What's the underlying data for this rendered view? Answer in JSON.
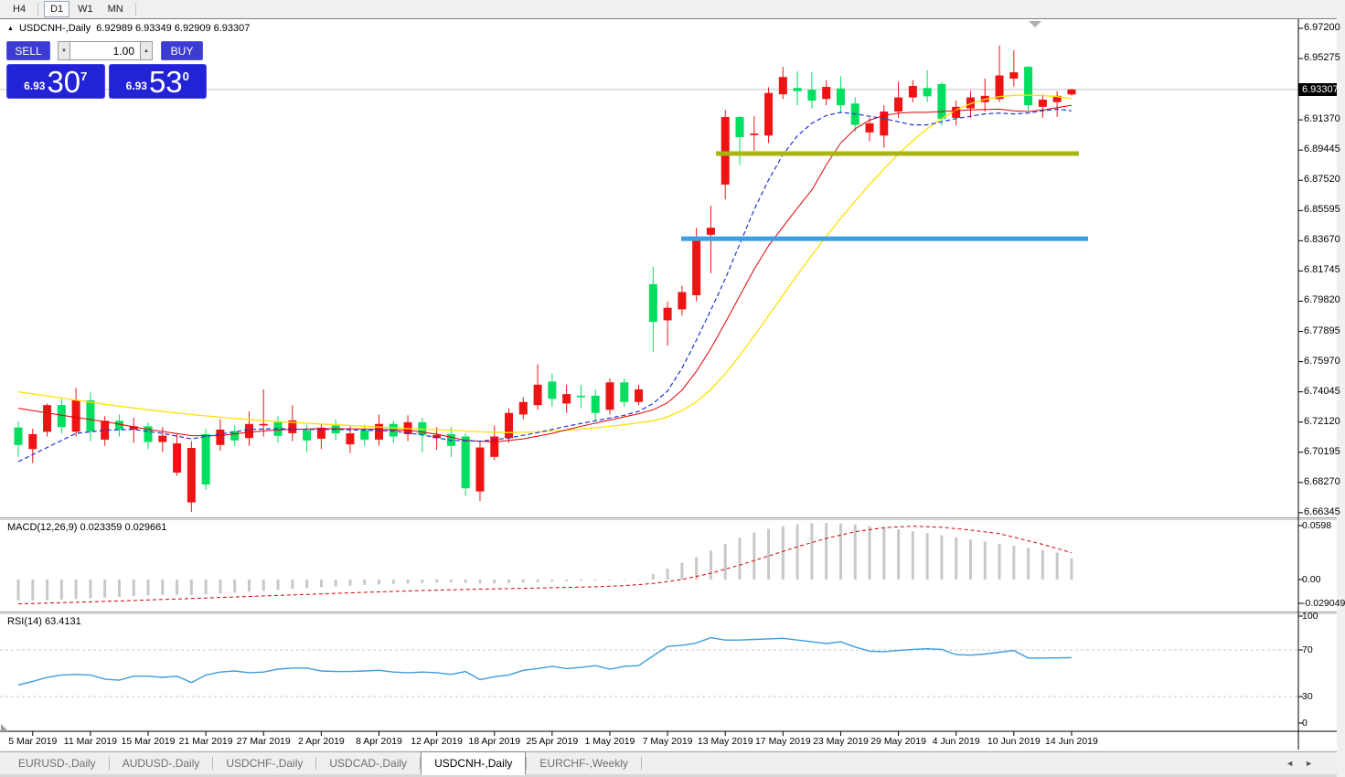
{
  "toolbar": {
    "timeframes": [
      {
        "label": "H4",
        "active": false
      },
      {
        "label": "D1",
        "active": true
      },
      {
        "label": "W1",
        "active": false
      },
      {
        "label": "MN",
        "active": false
      }
    ]
  },
  "icons": {
    "collapse_trade_panel": "▲",
    "spin_down": "▼",
    "spin_up": "▲",
    "tab_scroll_left": "◄",
    "tab_scroll_right": "►"
  },
  "header": {
    "symbol_period": "USDCNH-,Daily",
    "ohlc_text": "6.92989 6.93349 6.92909 6.93307"
  },
  "trade_panel": {
    "sell_label": "SELL",
    "buy_label": "BUY",
    "volume": "1.00",
    "sell_quote": {
      "small": "6.93",
      "big": "30",
      "sup": "7"
    },
    "buy_quote": {
      "small": "6.93",
      "big": "53",
      "sup": "0"
    }
  },
  "price_axis": {
    "ticks": [
      "6.97200",
      "6.95275",
      "6.91370",
      "6.89445",
      "6.87520",
      "6.85595",
      "6.83670",
      "6.81745",
      "6.79820",
      "6.77895",
      "6.75970",
      "6.74045",
      "6.72120",
      "6.70195",
      "6.68270",
      "6.66345"
    ],
    "current_price": "6.93307"
  },
  "colors": {
    "bull": "#ee1414",
    "bear": "#00df5f",
    "ma_fast": "#2036d4",
    "ma_mid": "#e30000",
    "ma_slow": "#ffe100",
    "hline_olive": "#a9b512",
    "hline_blue": "#3e9fe0",
    "macd_bar": "#c8c8c8",
    "macd_signal": "#d40000",
    "rsi_line": "#3e9cdd",
    "level_dash": "#c8c8c8",
    "price_line": "#c0c0c0",
    "trade_accent": "#2222d6"
  },
  "chart_data": {
    "type": "candlestick+indicators",
    "symbol": "USDCNH-",
    "timeframe": "Daily",
    "ylim": [
      6.6605,
      6.9778
    ],
    "candles": [
      [
        6.7177,
        6.7215,
        6.699,
        6.7066
      ],
      [
        6.704,
        6.717,
        6.695,
        6.7135
      ],
      [
        6.715,
        6.733,
        6.712,
        6.732
      ],
      [
        6.732,
        6.736,
        6.714,
        6.718
      ],
      [
        6.715,
        6.743,
        6.712,
        6.735
      ],
      [
        6.735,
        6.74,
        6.709,
        6.7153
      ],
      [
        6.71,
        6.725,
        6.706,
        6.722
      ],
      [
        6.722,
        6.726,
        6.712,
        6.7165
      ],
      [
        6.7165,
        6.724,
        6.708,
        6.7185
      ],
      [
        6.7185,
        6.721,
        6.704,
        6.7085
      ],
      [
        6.7085,
        6.718,
        6.702,
        6.7125
      ],
      [
        6.689,
        6.7135,
        6.687,
        6.7076
      ],
      [
        6.67,
        6.709,
        6.664,
        6.7047
      ],
      [
        6.7135,
        6.717,
        6.678,
        6.6815
      ],
      [
        6.7066,
        6.723,
        6.703,
        6.7164
      ],
      [
        6.7153,
        6.719,
        6.706,
        6.7095
      ],
      [
        6.711,
        6.728,
        6.706,
        6.72
      ],
      [
        6.719,
        6.742,
        6.712,
        6.72
      ],
      [
        6.7211,
        6.725,
        6.708,
        6.7124
      ],
      [
        6.7141,
        6.732,
        6.709,
        6.7223
      ],
      [
        6.716,
        6.7195,
        6.702,
        6.7095
      ],
      [
        6.7106,
        6.7195,
        6.704,
        6.7176
      ],
      [
        6.719,
        6.723,
        6.7095,
        6.714
      ],
      [
        6.707,
        6.7185,
        6.7015,
        6.714
      ],
      [
        6.716,
        6.7195,
        6.706,
        6.71
      ],
      [
        6.71,
        6.726,
        6.706,
        6.72
      ],
      [
        6.72,
        6.722,
        6.708,
        6.712
      ],
      [
        6.7135,
        6.7255,
        6.709,
        6.7211
      ],
      [
        6.7211,
        6.724,
        6.702,
        6.713
      ],
      [
        6.711,
        6.718,
        6.7035,
        6.713
      ],
      [
        6.7135,
        6.718,
        6.699,
        6.706
      ],
      [
        6.712,
        6.714,
        6.674,
        6.679
      ],
      [
        6.677,
        6.709,
        6.671,
        6.705
      ],
      [
        6.699,
        6.719,
        6.697,
        6.712
      ],
      [
        6.711,
        6.73,
        6.708,
        6.727
      ],
      [
        6.726,
        6.737,
        6.723,
        6.734
      ],
      [
        6.732,
        6.758,
        6.729,
        6.745
      ],
      [
        6.747,
        6.752,
        6.731,
        6.736
      ],
      [
        6.733,
        6.745,
        6.727,
        6.739
      ],
      [
        6.738,
        6.745,
        6.73,
        6.737
      ],
      [
        6.738,
        6.742,
        6.722,
        6.727
      ],
      [
        6.729,
        6.749,
        6.726,
        6.7465
      ],
      [
        6.7465,
        6.749,
        6.731,
        6.734
      ],
      [
        6.734,
        6.745,
        6.732,
        6.742
      ],
      [
        6.809,
        6.82,
        6.766,
        6.785
      ],
      [
        6.786,
        6.798,
        6.77,
        6.794
      ],
      [
        6.793,
        6.808,
        6.789,
        6.804
      ],
      [
        6.802,
        6.845,
        6.798,
        6.838
      ],
      [
        6.8405,
        6.859,
        6.816,
        6.845
      ],
      [
        6.8725,
        6.92,
        6.863,
        6.9155
      ],
      [
        6.9155,
        6.916,
        6.885,
        6.9027
      ],
      [
        6.904,
        6.916,
        6.894,
        6.905
      ],
      [
        6.9037,
        6.9345,
        6.899,
        6.9308
      ],
      [
        6.93,
        6.9474,
        6.927,
        6.941
      ],
      [
        6.934,
        6.9446,
        6.923,
        6.932
      ],
      [
        6.9328,
        6.944,
        6.921,
        6.926
      ],
      [
        6.927,
        6.939,
        6.923,
        6.9347
      ],
      [
        6.9337,
        6.9414,
        6.918,
        6.923
      ],
      [
        6.9241,
        6.928,
        6.906,
        6.9105
      ],
      [
        6.9057,
        6.915,
        6.9,
        6.9115
      ],
      [
        6.9037,
        6.923,
        6.896,
        6.919
      ],
      [
        6.919,
        6.938,
        6.915,
        6.928
      ],
      [
        6.928,
        6.939,
        6.925,
        6.9353
      ],
      [
        6.934,
        6.9454,
        6.925,
        6.9287
      ],
      [
        6.9365,
        6.938,
        6.91,
        6.9144
      ],
      [
        6.915,
        6.926,
        6.91,
        6.922
      ],
      [
        6.921,
        6.932,
        6.915,
        6.928
      ],
      [
        6.925,
        6.94,
        6.919,
        6.929
      ],
      [
        6.927,
        6.961,
        6.925,
        6.942
      ],
      [
        6.94,
        6.958,
        6.935,
        6.944
      ],
      [
        6.9475,
        6.948,
        6.9196,
        6.923
      ],
      [
        6.922,
        6.93,
        6.915,
        6.9266
      ],
      [
        6.925,
        6.932,
        6.9156,
        6.929
      ],
      [
        6.92989,
        6.93349,
        6.92909,
        6.93307
      ]
    ],
    "ma_fast_blue": [
      [
        0,
        6.696
      ],
      [
        2,
        6.705
      ],
      [
        4,
        6.714
      ],
      [
        6,
        6.716
      ],
      [
        8,
        6.7165
      ],
      [
        10,
        6.714
      ],
      [
        12,
        6.7105
      ],
      [
        14,
        6.7135
      ],
      [
        16,
        6.7165
      ],
      [
        18,
        6.717
      ],
      [
        20,
        6.7165
      ],
      [
        22,
        6.7165
      ],
      [
        24,
        6.716
      ],
      [
        26,
        6.7155
      ],
      [
        28,
        6.713
      ],
      [
        30,
        6.7095
      ],
      [
        32,
        6.709
      ],
      [
        34,
        6.711
      ],
      [
        36,
        6.7145
      ],
      [
        38,
        6.7185
      ],
      [
        40,
        6.722
      ],
      [
        42,
        6.7255
      ],
      [
        43,
        6.728
      ],
      [
        44,
        6.733
      ],
      [
        45,
        6.741
      ],
      [
        46,
        6.7555
      ],
      [
        47,
        6.7735
      ],
      [
        48,
        6.7925
      ],
      [
        49,
        6.8125
      ],
      [
        50,
        6.8345
      ],
      [
        51,
        6.8565
      ],
      [
        52,
        6.8755
      ],
      [
        53,
        6.8915
      ],
      [
        54,
        6.9035
      ],
      [
        55,
        6.9115
      ],
      [
        56,
        6.9165
      ],
      [
        57,
        6.9185
      ],
      [
        58,
        6.9175
      ],
      [
        59,
        6.916
      ],
      [
        60,
        6.9145
      ],
      [
        61,
        6.9125
      ],
      [
        62,
        6.9105
      ],
      [
        63,
        6.9105
      ],
      [
        64,
        6.9125
      ],
      [
        65,
        6.9145
      ],
      [
        66,
        6.916
      ],
      [
        67,
        6.9175
      ],
      [
        68,
        6.918
      ],
      [
        69,
        6.9175
      ],
      [
        70,
        6.918
      ],
      [
        71,
        6.9195
      ],
      [
        72,
        6.9205
      ],
      [
        73,
        6.9195
      ]
    ],
    "ma_mid_red": [
      [
        0,
        6.73
      ],
      [
        3,
        6.7255
      ],
      [
        6,
        6.7215
      ],
      [
        9,
        6.7165
      ],
      [
        12,
        6.7125
      ],
      [
        14,
        6.7125
      ],
      [
        16,
        6.7148
      ],
      [
        18,
        6.7162
      ],
      [
        21,
        6.717
      ],
      [
        24,
        6.7168
      ],
      [
        27,
        6.716
      ],
      [
        29,
        6.7135
      ],
      [
        31,
        6.7095
      ],
      [
        33,
        6.7085
      ],
      [
        35,
        6.7105
      ],
      [
        37,
        6.714
      ],
      [
        39,
        6.7185
      ],
      [
        41,
        6.7225
      ],
      [
        43,
        6.7265
      ],
      [
        44,
        6.729
      ],
      [
        45,
        6.7335
      ],
      [
        46,
        6.7415
      ],
      [
        47,
        6.7535
      ],
      [
        48,
        6.768
      ],
      [
        49,
        6.7845
      ],
      [
        50,
        6.8015
      ],
      [
        51,
        6.8185
      ],
      [
        52,
        6.8335
      ],
      [
        53,
        6.8455
      ],
      [
        54,
        6.8575
      ],
      [
        55,
        6.869
      ],
      [
        56,
        6.885
      ],
      [
        57,
        6.899
      ],
      [
        58,
        6.908
      ],
      [
        59,
        6.9135
      ],
      [
        60,
        6.9165
      ],
      [
        61,
        6.918
      ],
      [
        62,
        6.9185
      ],
      [
        63,
        6.9185
      ],
      [
        64,
        6.919
      ],
      [
        66,
        6.92
      ],
      [
        68,
        6.9205
      ],
      [
        69,
        6.9195
      ],
      [
        70,
        6.919
      ],
      [
        71,
        6.92
      ],
      [
        72,
        6.9215
      ],
      [
        73,
        6.923
      ]
    ],
    "ma_slow_yellow": [
      [
        0,
        6.7405
      ],
      [
        3,
        6.7365
      ],
      [
        6,
        6.7325
      ],
      [
        9,
        6.729
      ],
      [
        12,
        6.726
      ],
      [
        15,
        6.7235
      ],
      [
        18,
        6.7215
      ],
      [
        21,
        6.72
      ],
      [
        24,
        6.7185
      ],
      [
        27,
        6.717
      ],
      [
        30,
        6.716
      ],
      [
        32,
        6.715
      ],
      [
        34,
        6.7145
      ],
      [
        36,
        6.715
      ],
      [
        38,
        6.716
      ],
      [
        40,
        6.7175
      ],
      [
        42,
        6.7195
      ],
      [
        44,
        6.722
      ],
      [
        45,
        6.7245
      ],
      [
        46,
        6.7285
      ],
      [
        47,
        6.734
      ],
      [
        48,
        6.742
      ],
      [
        49,
        6.752
      ],
      [
        50,
        6.7635
      ],
      [
        51,
        6.776
      ],
      [
        52,
        6.789
      ],
      [
        53,
        6.802
      ],
      [
        54,
        6.815
      ],
      [
        55,
        6.8275
      ],
      [
        56,
        6.8395
      ],
      [
        57,
        6.851
      ],
      [
        58,
        6.862
      ],
      [
        59,
        6.8725
      ],
      [
        60,
        6.8825
      ],
      [
        61,
        6.892
      ],
      [
        62,
        6.9005
      ],
      [
        63,
        6.908
      ],
      [
        64,
        6.9145
      ],
      [
        65,
        6.92
      ],
      [
        66,
        6.924
      ],
      [
        67,
        6.9268
      ],
      [
        68,
        6.9285
      ],
      [
        69,
        6.9293
      ],
      [
        70,
        6.9295
      ],
      [
        71,
        6.9292
      ],
      [
        72,
        6.9285
      ],
      [
        73,
        6.9272
      ]
    ],
    "hlines": [
      {
        "name": "resistance-olive",
        "price": 6.8922,
        "x1": 783,
        "x2": 1180,
        "width": 5
      },
      {
        "name": "support-blue",
        "price": 6.838,
        "x1": 745,
        "x2": 1190,
        "width": 5
      }
    ],
    "current_price": 6.93307,
    "macd": {
      "label": "MACD(12,26,9)",
      "main_value": "0.023359",
      "signal_value": "0.029661",
      "scale_ticks": [
        "0.0598",
        "0.00",
        "-0.029049"
      ],
      "histogram": [
        -0.023,
        -0.0235,
        -0.0228,
        -0.0222,
        -0.0216,
        -0.0208,
        -0.02,
        -0.0192,
        -0.0184,
        -0.0176,
        -0.017,
        -0.0168,
        -0.0172,
        -0.0165,
        -0.0155,
        -0.0145,
        -0.0135,
        -0.0125,
        -0.0114,
        -0.0104,
        -0.0094,
        -0.0084,
        -0.0076,
        -0.0068,
        -0.006,
        -0.0054,
        -0.0048,
        -0.0043,
        -0.0038,
        -0.0034,
        -0.0032,
        -0.0036,
        -0.0042,
        -0.0044,
        -0.004,
        -0.0034,
        -0.0028,
        -0.0022,
        -0.0018,
        -0.0014,
        -0.0011,
        -0.0008,
        -0.0006,
        -0.0004,
        0.006,
        0.012,
        0.0185,
        0.025,
        0.032,
        0.0395,
        0.0465,
        0.052,
        0.0562,
        0.0592,
        0.0612,
        0.0624,
        0.0628,
        0.0622,
        0.061,
        0.0594,
        0.0576,
        0.0556,
        0.0536,
        0.0515,
        0.0492,
        0.0468,
        0.0444,
        0.042,
        0.0398,
        0.0376,
        0.0352,
        0.0326,
        0.0298,
        0.0234
      ],
      "signal_points": [
        [
          0,
          -0.027
        ],
        [
          4,
          -0.0252
        ],
        [
          8,
          -0.0232
        ],
        [
          12,
          -0.021
        ],
        [
          16,
          -0.0188
        ],
        [
          20,
          -0.0164
        ],
        [
          24,
          -0.0142
        ],
        [
          28,
          -0.0122
        ],
        [
          32,
          -0.0106
        ],
        [
          36,
          -0.0094
        ],
        [
          40,
          -0.008
        ],
        [
          42,
          -0.0068
        ],
        [
          44,
          -0.0044
        ],
        [
          46,
          0.0
        ],
        [
          48,
          0.007
        ],
        [
          50,
          0.016
        ],
        [
          52,
          0.0262
        ],
        [
          54,
          0.0364
        ],
        [
          56,
          0.0456
        ],
        [
          58,
          0.053
        ],
        [
          60,
          0.0576
        ],
        [
          62,
          0.0592
        ],
        [
          64,
          0.058
        ],
        [
          66,
          0.0548
        ],
        [
          68,
          0.0508
        ],
        [
          69,
          0.047
        ],
        [
          70,
          0.043
        ],
        [
          71,
          0.039
        ],
        [
          72,
          0.0345
        ],
        [
          73,
          0.0297
        ]
      ]
    },
    "rsi": {
      "label": "RSI(14)",
      "value": "63.4131",
      "levels": [
        70,
        30
      ],
      "scale_ticks": [
        "100",
        "70",
        "30",
        "0"
      ],
      "values": [
        40,
        43,
        46.5,
        48.5,
        49,
        48.5,
        45,
        44,
        47.5,
        47.5,
        46.5,
        47.5,
        42,
        48.5,
        51,
        52,
        50.5,
        51,
        53.5,
        54.5,
        54.5,
        52,
        51.5,
        51.5,
        52,
        52.5,
        51,
        50.5,
        51,
        50.5,
        49,
        51.5,
        44.5,
        47,
        48.5,
        52.5,
        54,
        56,
        54,
        55,
        56.5,
        53.5,
        56,
        56.5,
        65,
        73,
        74,
        76,
        80.5,
        78.5,
        78.5,
        79,
        79.5,
        80,
        78.5,
        77,
        75.5,
        77,
        72.5,
        69,
        68.5,
        69.5,
        70.5,
        71,
        70.5,
        66,
        65.5,
        66.5,
        68,
        69.5,
        63,
        63,
        63.2,
        63.4
      ]
    },
    "dates": [
      "5 Mar 2019",
      "11 Mar 2019",
      "15 Mar 2019",
      "21 Mar 2019",
      "27 Mar 2019",
      "2 Apr 2019",
      "8 Apr 2019",
      "12 Apr 2019",
      "18 Apr 2019",
      "25 Apr 2019",
      "1 May 2019",
      "7 May 2019",
      "13 May 2019",
      "17 May 2019",
      "23 May 2019",
      "29 May 2019",
      "4 Jun 2019",
      "10 Jun 2019",
      "14 Jun 2019"
    ]
  },
  "tabs": {
    "items": [
      {
        "label": "EURUSD-,Daily",
        "active": false
      },
      {
        "label": "AUDUSD-,Daily",
        "active": false
      },
      {
        "label": "USDCHF-,Daily",
        "active": false
      },
      {
        "label": "USDCAD-,Daily",
        "active": false
      },
      {
        "label": "USDCNH-,Daily",
        "active": true
      },
      {
        "label": "EURCHF-,Weekly",
        "active": false
      }
    ]
  }
}
